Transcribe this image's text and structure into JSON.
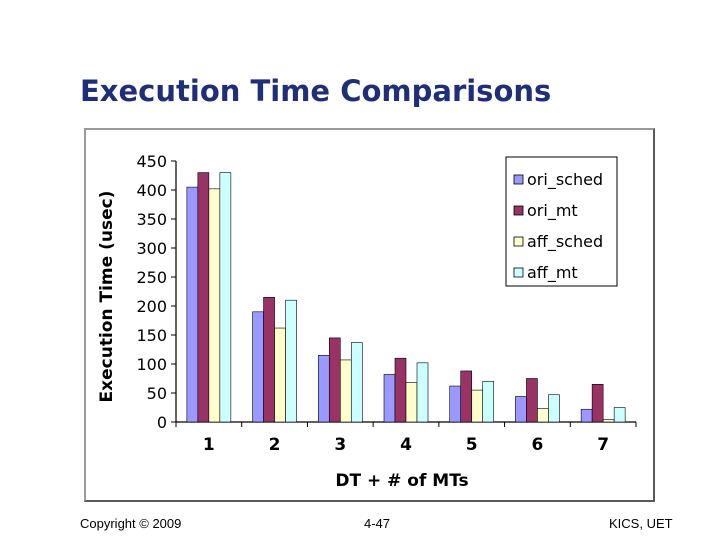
{
  "slide": {
    "title": "Execution Time Comparisons",
    "footer_left": "Copyright © 2009",
    "footer_center": "4-47",
    "footer_right": "KICS, UET"
  },
  "chart_data": {
    "type": "bar",
    "categories": [
      "1",
      "2",
      "3",
      "4",
      "5",
      "6",
      "7"
    ],
    "xlabel": "DT + # of MTs",
    "ylabel": "Execution Time (usec)",
    "ylim": [
      0,
      450
    ],
    "yticks": [
      "0",
      "50",
      "100",
      "150",
      "200",
      "250",
      "300",
      "350",
      "400",
      "450"
    ],
    "grid": false,
    "legend_position": "top-right",
    "series": [
      {
        "name": "ori_sched",
        "color": "#9999ff",
        "values": [
          405,
          190,
          115,
          82,
          62,
          44,
          22
        ]
      },
      {
        "name": "ori_mt",
        "color": "#993366",
        "values": [
          430,
          215,
          145,
          110,
          88,
          75,
          65
        ]
      },
      {
        "name": "aff_sched",
        "color": "#ffffcc",
        "values": [
          402,
          162,
          107,
          68,
          55,
          23,
          4
        ]
      },
      {
        "name": "aff_mt",
        "color": "#ccffff",
        "values": [
          430,
          210,
          137,
          102,
          70,
          47,
          25
        ]
      }
    ]
  }
}
